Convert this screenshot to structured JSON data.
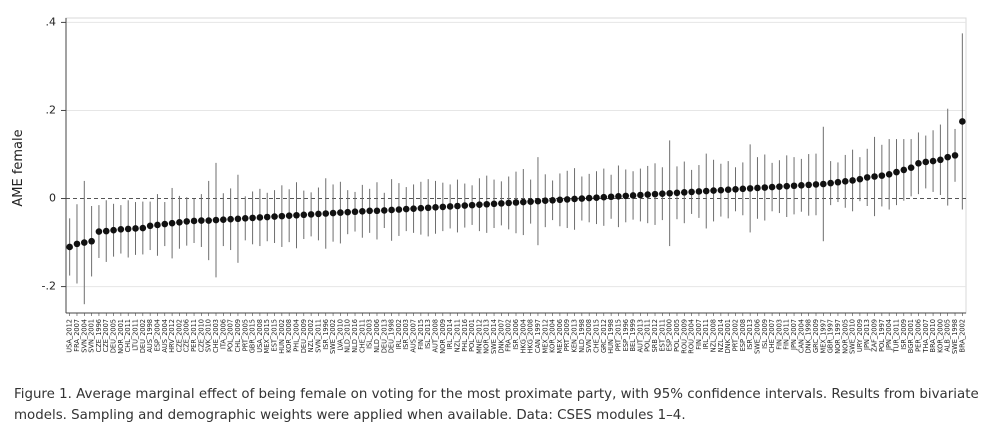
{
  "chart_data": {
    "type": "dot_errorbar",
    "ylabel": "AME female",
    "caption": "Figure 1. Average marginal effect of being female on voting for the most proximate party, with 95% confidence intervals. Results from bivariate models. Sampling and demographic weights were applied when available. Data: CSES modules 1–4.",
    "categories": [
      "USA_2012",
      "FRA_2007",
      "SVN_2004",
      "SVN_2001",
      "CZE_1996",
      "CZE_2007",
      "DEU_2005",
      "NOR_2001",
      "CHL_2011",
      "LTU_2011",
      "DEU_2002",
      "AUS_1998",
      "ESP_2004",
      "AUS_2004",
      "HRV_2012",
      "CZE_2002",
      "CZE_2006",
      "PER_2011",
      "CZE_2010",
      "SVK_2010",
      "CHE_2003",
      "ITA_2006",
      "POL_2007",
      "CHL_2009",
      "PRT_2005",
      "GBR_2015",
      "USA_2008",
      "MEX_2015",
      "EST_2015",
      "HUN_2002",
      "KOR_2008",
      "PHL_2004",
      "DEU_2009",
      "NZL_2002",
      "SVN_2011",
      "ISR_1996",
      "SWE_2002",
      "LVA_2010",
      "NLD_2010",
      "NLD_2016",
      "CHE_2011",
      "ISL_2003",
      "NLD_2006",
      "DEU_2013",
      "DEU_1998",
      "IRL_2002",
      "ISR_2003",
      "AUS_2007",
      "FIN_2015",
      "ISL_2013",
      "AUT_2008",
      "NOR_2009",
      "IRL_2014",
      "NZL_2011",
      "PHL_2016",
      "POL_2001",
      "MNE_2012",
      "NOR_2013",
      "SWE_2014",
      "DNK_2007",
      "FRA_2002",
      "ISR_2006",
      "HKG_2004",
      "HKG_2008",
      "CAN_1997",
      "MEX_2012",
      "KOR_2004",
      "MEX_2006",
      "PRT_2009",
      "KEN_2013",
      "NLD_1998",
      "SVN_2008",
      "CHE_2015",
      "GRC_2012",
      "HUN_1998",
      "PRT_2015",
      "ESP_1996",
      "BEL_1999",
      "AUT_2013",
      "POL_2011",
      "SRB_2012",
      "EST_2011",
      "ESP_2000",
      "POL_2005",
      "ROU_2009",
      "ROU_2004",
      "FIN_2007",
      "IRL_2011",
      "NZL_2008",
      "NZL_2014",
      "DNK_2001",
      "PRT_2002",
      "ESP_2008",
      "ISR_2013",
      "SWE_2006",
      "ISL_2009",
      "CHE_2007",
      "FIN_2003",
      "FIN_2011",
      "JPN_2007",
      "CAN_2004",
      "DNK_1998",
      "GRC_2009",
      "MEX_1997",
      "GBR_1997",
      "NOR_1997",
      "NOR_2005",
      "SWE_2010",
      "URY_2009",
      "JPN_2013",
      "ZAF_2009",
      "POL_1997",
      "JPN_2004",
      "TUR_2011",
      "ISR_2009",
      "BGR_2001",
      "PER_2006",
      "THA_2007",
      "BRA_2010",
      "KOR_2000",
      "ALB_2005",
      "SWE_1998",
      "BRA_2002"
    ],
    "values": [
      -0.11,
      -0.103,
      -0.1,
      -0.097,
      -0.075,
      -0.074,
      -0.072,
      -0.07,
      -0.069,
      -0.068,
      -0.067,
      -0.062,
      -0.06,
      -0.058,
      -0.056,
      -0.054,
      -0.052,
      -0.051,
      -0.05,
      -0.05,
      -0.049,
      -0.048,
      -0.047,
      -0.046,
      -0.045,
      -0.044,
      -0.043,
      -0.042,
      -0.041,
      -0.04,
      -0.039,
      -0.038,
      -0.037,
      -0.036,
      -0.035,
      -0.034,
      -0.033,
      -0.032,
      -0.031,
      -0.03,
      -0.029,
      -0.028,
      -0.028,
      -0.027,
      -0.026,
      -0.025,
      -0.024,
      -0.023,
      -0.022,
      -0.021,
      -0.02,
      -0.019,
      -0.018,
      -0.017,
      -0.016,
      -0.015,
      -0.014,
      -0.013,
      -0.012,
      -0.011,
      -0.01,
      -0.009,
      -0.008,
      -0.007,
      -0.006,
      -0.005,
      -0.004,
      -0.003,
      -0.002,
      -0.001,
      0,
      0.001,
      0.002,
      0.003,
      0.004,
      0.005,
      0.006,
      0.007,
      0.008,
      0.009,
      0.01,
      0.011,
      0.012,
      0.013,
      0.014,
      0.015,
      0.016,
      0.017,
      0.018,
      0.019,
      0.02,
      0.021,
      0.022,
      0.023,
      0.024,
      0.025,
      0.026,
      0.027,
      0.028,
      0.029,
      0.03,
      0.031,
      0.032,
      0.033,
      0.035,
      0.037,
      0.039,
      0.041,
      0.044,
      0.048,
      0.05,
      0.052,
      0.055,
      0.06,
      0.065,
      0.07,
      0.08,
      0.083,
      0.085,
      0.088,
      0.094,
      0.098,
      0.175
    ],
    "errors": [
      0.065,
      0.09,
      0.14,
      0.08,
      0.06,
      0.07,
      0.06,
      0.055,
      0.065,
      0.06,
      0.06,
      0.055,
      0.07,
      0.05,
      0.08,
      0.06,
      0.055,
      0.05,
      0.06,
      0.09,
      0.13,
      0.06,
      0.07,
      0.1,
      0.05,
      0.06,
      0.065,
      0.055,
      0.06,
      0.07,
      0.06,
      0.075,
      0.055,
      0.05,
      0.06,
      0.08,
      0.065,
      0.07,
      0.05,
      0.045,
      0.06,
      0.05,
      0.065,
      0.04,
      0.07,
      0.06,
      0.05,
      0.055,
      0.06,
      0.065,
      0.06,
      0.055,
      0.05,
      0.06,
      0.05,
      0.045,
      0.06,
      0.065,
      0.055,
      0.05,
      0.06,
      0.07,
      0.075,
      0.05,
      0.1,
      0.06,
      0.045,
      0.06,
      0.065,
      0.07,
      0.05,
      0.055,
      0.06,
      0.065,
      0.05,
      0.07,
      0.06,
      0.055,
      0.06,
      0.065,
      0.07,
      0.06,
      0.12,
      0.06,
      0.07,
      0.05,
      0.06,
      0.085,
      0.07,
      0.06,
      0.065,
      0.05,
      0.06,
      0.1,
      0.07,
      0.075,
      0.055,
      0.06,
      0.07,
      0.065,
      0.06,
      0.07,
      0.07,
      0.13,
      0.05,
      0.045,
      0.06,
      0.07,
      0.05,
      0.065,
      0.09,
      0.07,
      0.08,
      0.075,
      0.07,
      0.065,
      0.07,
      0.06,
      0.07,
      0.08,
      0.11,
      0.06,
      0.2
    ],
    "color": "#111111",
    "error_color": "#6e6e6e",
    "ylim": [
      -0.26,
      0.41
    ],
    "yticks": [
      {
        "value": -0.2,
        "label": "-.2"
      },
      0,
      {
        "value": 0.2,
        "label": ".2"
      },
      {
        "value": 0.4,
        "label": ".4"
      }
    ],
    "grid": true,
    "zero_line": true
  }
}
